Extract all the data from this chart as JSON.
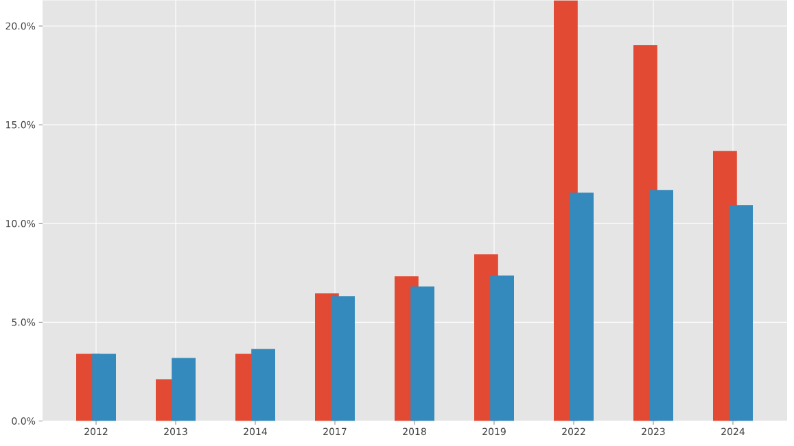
{
  "chart_data": {
    "type": "bar",
    "categories": [
      "2012",
      "2013",
      "2014",
      "2017",
      "2018",
      "2019",
      "2022",
      "2023",
      "2024"
    ],
    "series": [
      {
        "color": "#e24a33",
        "values": [
          3.4,
          2.12,
          3.4,
          6.46,
          7.33,
          8.44,
          21.3,
          19.03,
          13.68
        ]
      },
      {
        "color": "#348abd",
        "values": [
          3.4,
          3.19,
          3.65,
          6.32,
          6.81,
          7.36,
          11.56,
          11.7,
          10.94
        ]
      }
    ],
    "ylim": [
      0,
      21.3
    ],
    "yticks": [
      {
        "value": 0,
        "label": "0.0%"
      },
      {
        "value": 5,
        "label": "5.0%"
      },
      {
        "value": 10,
        "label": "10.0%"
      },
      {
        "value": 15,
        "label": "15.0%"
      },
      {
        "value": 20,
        "label": "20.0%"
      }
    ],
    "grid": true
  }
}
